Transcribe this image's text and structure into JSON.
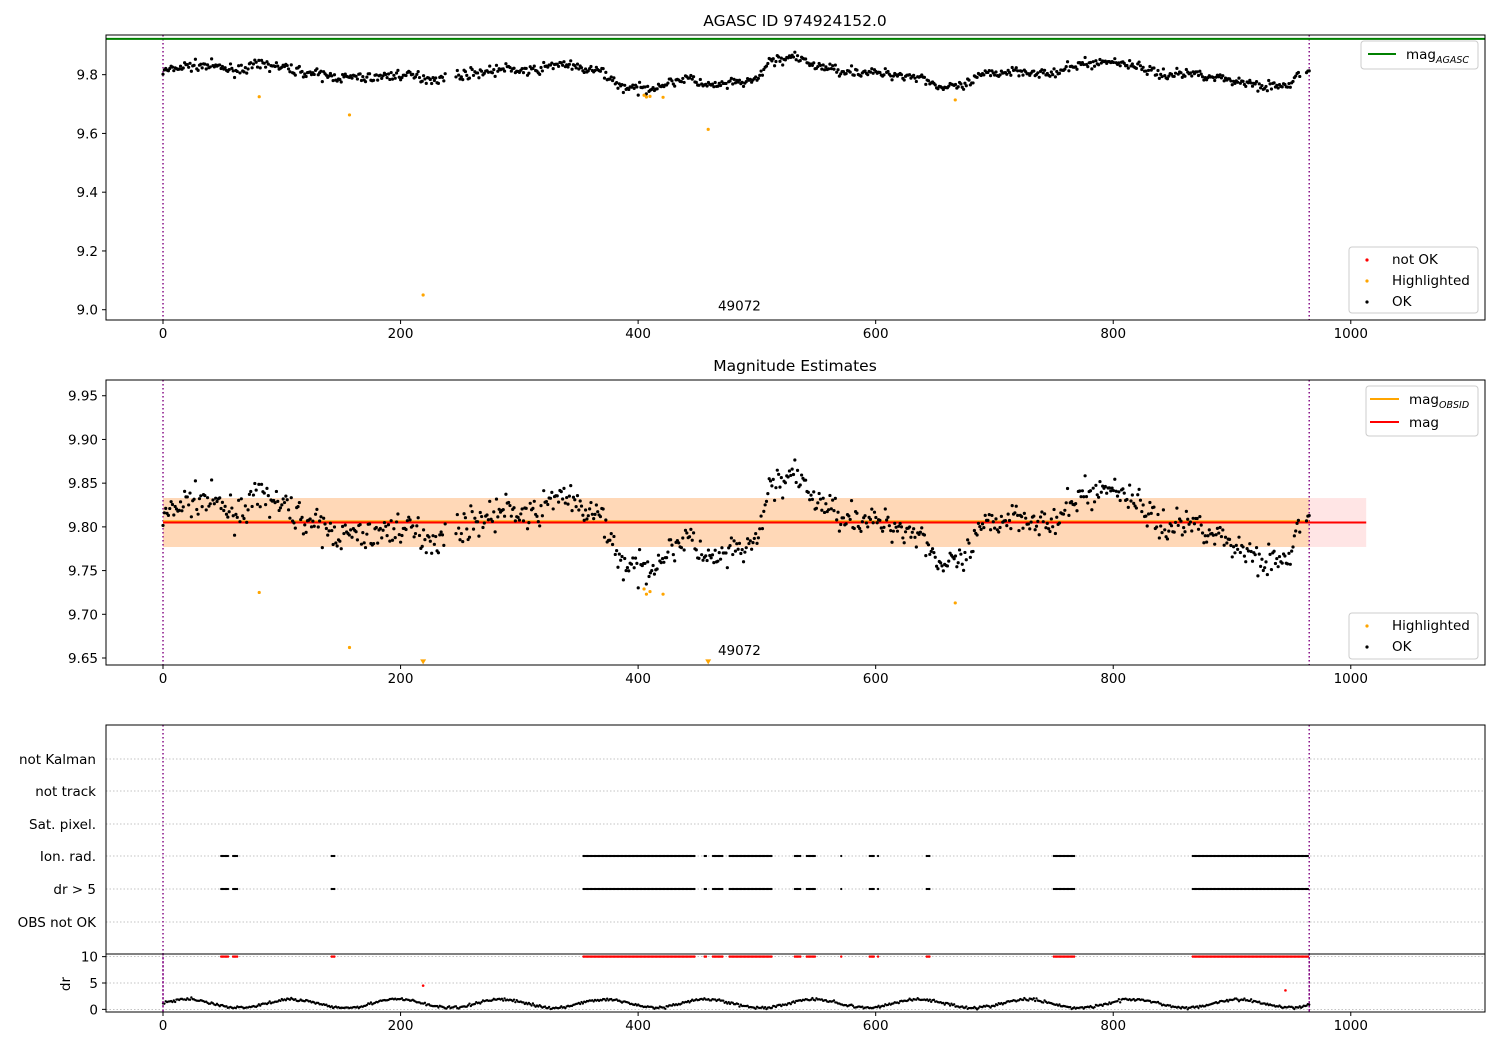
{
  "colors": {
    "ok": "#000000",
    "highlighted": "#ffa500",
    "not_ok": "#ff0000",
    "agasc_line": "#008000",
    "obsid_line": "#ffa500",
    "mag_line": "#ff0000",
    "obs_boundary": "#800080",
    "band_red": "#ff0000",
    "band_orange": "#ffa500",
    "grid": "#b0b0b0"
  },
  "chart_data": [
    {
      "id": "agasc-panel",
      "type": "scatter",
      "title": "AGASC ID 974924152.0",
      "xlabel": "",
      "ylabel": "",
      "xlim": [
        -48,
        1113
      ],
      "ylim": [
        8.965,
        9.935
      ],
      "xticks": [
        0,
        200,
        400,
        600,
        800,
        1000
      ],
      "yticks": [
        "9.0",
        "9.2",
        "9.4",
        "9.6",
        "9.8"
      ],
      "grid": false,
      "hlines": [
        {
          "name": "mag_AGASC",
          "y": 9.922,
          "color": "#008000"
        }
      ],
      "obs_boundaries": [
        0,
        965
      ],
      "annotation": {
        "text": "49072",
        "x": 463,
        "y": 9.0
      },
      "legend_lines": {
        "placement": "upper right",
        "entries": [
          {
            "label": "mag",
            "sub": "AGASC",
            "color": "#008000"
          }
        ]
      },
      "legend_points": {
        "placement": "lower right",
        "entries": [
          {
            "label": "not OK",
            "color": "#ff0000"
          },
          {
            "label": "Highlighted",
            "color": "#ffa500"
          },
          {
            "label": "OK",
            "color": "#000000"
          }
        ]
      },
      "series": [
        {
          "name": "OK",
          "n_points": 850,
          "x_range": [
            0,
            965
          ],
          "mean": 9.805,
          "color": "#000000"
        },
        {
          "name": "Highlighted",
          "color": "#ffa500",
          "points": [
            [
              81,
              9.725
            ],
            [
              157,
              9.663
            ],
            [
              219,
              9.05
            ],
            [
              405,
              9.73
            ],
            [
              407,
              9.724
            ],
            [
              410,
              9.726
            ],
            [
              421,
              9.723
            ],
            [
              459,
              9.614
            ],
            [
              667,
              9.714
            ]
          ]
        }
      ]
    },
    {
      "id": "magnitude-panel",
      "type": "scatter",
      "title": "Magnitude Estimates",
      "xlabel": "",
      "ylabel": "",
      "xlim": [
        -48,
        1113
      ],
      "ylim": [
        9.642,
        9.968
      ],
      "xticks": [
        0,
        200,
        400,
        600,
        800,
        1000
      ],
      "yticks": [
        "9.65",
        "9.70",
        "9.75",
        "9.80",
        "9.85",
        "9.90",
        "9.95"
      ],
      "grid": false,
      "hlines": [
        {
          "name": "mag_OBSID",
          "y": 9.806,
          "x_range": [
            0,
            965
          ],
          "color": "#ffa500"
        },
        {
          "name": "mag",
          "y": 9.805,
          "x_range": [
            0,
            1013
          ],
          "color": "#ff0000"
        }
      ],
      "bands": [
        {
          "name": "mag",
          "y_range": [
            9.777,
            9.833
          ],
          "x_range": [
            0,
            1013
          ],
          "color": "#ff0000"
        },
        {
          "name": "mag_OBSID",
          "y_range": [
            9.777,
            9.833
          ],
          "x_range": [
            0,
            965
          ],
          "color": "#ffa500"
        }
      ],
      "obs_boundaries": [
        0,
        965
      ],
      "annotation": {
        "text": "49072",
        "x": 463,
        "y": 9.65
      },
      "legend_lines": {
        "placement": "upper right",
        "entries": [
          {
            "label": "mag",
            "sub": "OBSID",
            "color": "#ffa500"
          },
          {
            "label": "mag",
            "sub": "",
            "color": "#ff0000"
          }
        ]
      },
      "legend_points": {
        "placement": "lower right",
        "entries": [
          {
            "label": "Highlighted",
            "color": "#ffa500"
          },
          {
            "label": "OK",
            "color": "#000000"
          }
        ]
      },
      "series": [
        {
          "name": "OK",
          "n_points": 850,
          "x_range": [
            0,
            965
          ],
          "mean": 9.805,
          "color": "#000000"
        },
        {
          "name": "Highlighted",
          "color": "#ffa500",
          "points": [
            [
              81,
              9.725
            ],
            [
              157,
              9.662
            ],
            [
              405,
              9.729
            ],
            [
              407,
              9.723
            ],
            [
              410,
              9.726
            ],
            [
              421,
              9.723
            ],
            [
              667,
              9.713
            ]
          ]
        },
        {
          "name": "Highlighted (below axis)",
          "marker": "triangle-down",
          "color": "#ffa500",
          "points": [
            [
              219,
              9.645
            ],
            [
              459,
              9.645
            ]
          ]
        }
      ]
    },
    {
      "id": "flags-panel",
      "type": "scatter",
      "title": "",
      "xlim": [
        -48,
        1113
      ],
      "categories": [
        "not Kalman",
        "not track",
        "Sat. pixel.",
        "Ion. rad.",
        "dr > 5",
        "OBS not OK"
      ],
      "obs_boundaries": [
        0,
        965
      ],
      "grid": true,
      "flag_ranges": {
        "Ion. rad.": [
          [
            49,
            55
          ],
          [
            59,
            63
          ],
          [
            142,
            145
          ],
          [
            354,
            448
          ],
          [
            456,
            458
          ],
          [
            463,
            472
          ],
          [
            477,
            513
          ],
          [
            532,
            537
          ],
          [
            542,
            549
          ],
          [
            571,
            571
          ],
          [
            595,
            599
          ],
          [
            602,
            602
          ],
          [
            643,
            646
          ],
          [
            750,
            768
          ],
          [
            867,
            965
          ]
        ],
        "dr > 5": [
          [
            49,
            55
          ],
          [
            59,
            63
          ],
          [
            142,
            145
          ],
          [
            354,
            448
          ],
          [
            456,
            458
          ],
          [
            463,
            472
          ],
          [
            477,
            513
          ],
          [
            532,
            537
          ],
          [
            542,
            549
          ],
          [
            571,
            571
          ],
          [
            595,
            599
          ],
          [
            602,
            602
          ],
          [
            643,
            646
          ],
          [
            750,
            768
          ],
          [
            867,
            965
          ]
        ]
      }
    },
    {
      "id": "dr-panel",
      "type": "scatter",
      "title": "",
      "xlabel": "",
      "ylabel": "dr",
      "xlim": [
        -48,
        1113
      ],
      "ylim": [
        -0.5,
        10.5
      ],
      "xticks": [
        0,
        200,
        400,
        600,
        800,
        1000
      ],
      "yticks": [
        "0",
        "5",
        "10"
      ],
      "grid": true,
      "obs_boundaries": [
        0,
        965
      ],
      "series": [
        {
          "name": "OK",
          "color": "#000000",
          "x_range": [
            0,
            965
          ],
          "y_range": [
            0,
            2.6
          ]
        },
        {
          "name": "not OK (clipped at 10)",
          "color": "#ff0000",
          "y": 10
        },
        {
          "name": "not OK",
          "color": "#ff0000",
          "points": [
            [
              219,
              4.5
            ],
            [
              945,
              3.6
            ]
          ]
        }
      ]
    }
  ]
}
